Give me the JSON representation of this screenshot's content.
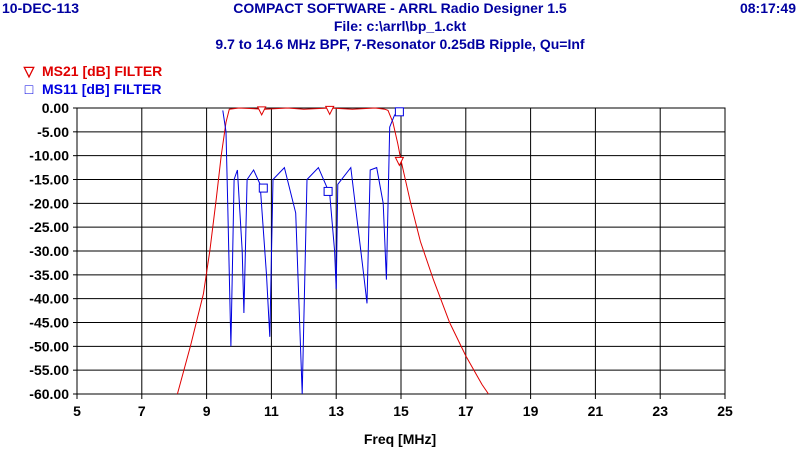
{
  "header": {
    "date": "10-DEC-113",
    "time": "08:17:49",
    "title": "COMPACT SOFTWARE - ARRL Radio Designer 1.5",
    "file": "File: c:\\arrl\\bp_1.ckt",
    "subtitle": "9.7 to 14.6 MHz BPF, 7-Resonator 0.25dB Ripple, Qu=Inf"
  },
  "colors": {
    "ms21": "#e00000",
    "ms11": "#0000e0",
    "header": "#0000a0",
    "grid": "#000000"
  },
  "chart_data": {
    "type": "line",
    "xlabel": "Freq [MHz]",
    "ylabel": "",
    "xlim": [
      5,
      25
    ],
    "ylim": [
      -60,
      0
    ],
    "grid": true,
    "legend_position": "top-left",
    "x_ticks": [
      5,
      7,
      9,
      11,
      13,
      15,
      17,
      19,
      21,
      23,
      25
    ],
    "y_ticks": [
      0,
      -5,
      -10,
      -15,
      -20,
      -25,
      -30,
      -35,
      -40,
      -45,
      -50,
      -55,
      -60
    ],
    "x_tick_labels": [
      "5",
      "7",
      "9",
      "11",
      "13",
      "15",
      "17",
      "19",
      "21",
      "23",
      "25"
    ],
    "y_tick_labels": [
      "0.00",
      "-5.00",
      "-10.00",
      "-15.00",
      "-20.00",
      "-25.00",
      "-30.00",
      "-35.00",
      "-40.00",
      "-45.00",
      "-50.00",
      "-55.00",
      "-60.00"
    ],
    "series": [
      {
        "name": "MS21 [dB] FILTER",
        "marker": "triangle-down",
        "x": [
          8.1,
          8.5,
          8.9,
          9.1,
          9.3,
          9.45,
          9.6,
          9.7,
          10.0,
          10.8,
          11.5,
          12.0,
          12.8,
          13.5,
          14.2,
          14.5,
          14.6,
          14.75,
          14.9,
          15.0,
          15.3,
          15.6,
          16.0,
          16.5,
          17.0,
          17.5,
          17.7
        ],
        "y": [
          -60,
          -50,
          -39,
          -30,
          -19,
          -10,
          -3,
          -0.25,
          0,
          -0.25,
          0,
          -0.25,
          0,
          -0.25,
          0,
          -0.25,
          -0.5,
          -3,
          -7.5,
          -11,
          -20,
          -28,
          -36,
          -45,
          -52,
          -58,
          -60
        ],
        "markers_x": [
          10.7,
          12.8,
          14.95
        ],
        "markers_y": [
          -0.6,
          -0.5,
          -11.2
        ]
      },
      {
        "name": "MS11 [dB] FILTER",
        "marker": "square",
        "x": [
          9.5,
          9.6,
          9.65,
          9.75,
          9.85,
          9.95,
          10.1,
          10.15,
          10.25,
          10.45,
          10.65,
          10.85,
          10.95,
          11.05,
          11.4,
          11.75,
          11.95,
          12.1,
          12.45,
          12.8,
          12.95,
          13.0,
          13.05,
          13.45,
          13.85,
          13.95,
          14.05,
          14.25,
          14.45,
          14.55,
          14.65,
          14.8,
          14.95,
          15.1
        ],
        "y": [
          -0.5,
          -5,
          -20,
          -50,
          -15,
          -13,
          -30,
          -43,
          -15,
          -13,
          -16,
          -35,
          -48,
          -15,
          -12.5,
          -22,
          -60,
          -15,
          -12.5,
          -18,
          -30,
          -38,
          -16,
          -12.5,
          -35,
          -41,
          -13,
          -12.5,
          -20,
          -36,
          -4,
          -1.5,
          -0.3,
          0
        ],
        "markers_x": [
          10.75,
          12.75,
          14.95
        ],
        "markers_y": [
          -16.8,
          -17.5,
          -0.8
        ]
      }
    ]
  }
}
